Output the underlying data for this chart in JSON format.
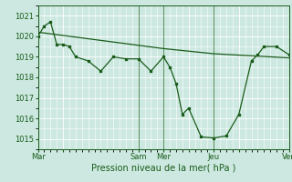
{
  "xlabel": "Pression niveau de la mer( hPa )",
  "bg_color": "#cce8e0",
  "grid_color": "#ffffff",
  "line_color": "#1a5c1a",
  "ylim": [
    1014.5,
    1021.5
  ],
  "yticks": [
    1015,
    1016,
    1017,
    1018,
    1019,
    1020,
    1021
  ],
  "xtick_labels": [
    "Mar",
    "",
    "Sam",
    "Mer",
    "",
    "Jeu",
    "",
    "Ven"
  ],
  "xtick_positions": [
    0,
    24,
    96,
    120,
    144,
    168,
    192,
    240
  ],
  "vline_positions": [
    96,
    120,
    168,
    240
  ],
  "series1_x": [
    0,
    6,
    12,
    18,
    24,
    30,
    36,
    48,
    60,
    72,
    84,
    96,
    108,
    120,
    126,
    132,
    138,
    144,
    156,
    168,
    180,
    192,
    204,
    210,
    216,
    228,
    240
  ],
  "series1_y": [
    1020.0,
    1020.5,
    1020.7,
    1019.6,
    1019.6,
    1019.5,
    1019.0,
    1018.8,
    1018.3,
    1019.0,
    1018.9,
    1018.9,
    1018.3,
    1019.0,
    1018.5,
    1017.7,
    1016.2,
    1016.5,
    1015.1,
    1015.05,
    1015.15,
    1016.2,
    1018.8,
    1019.1,
    1019.5,
    1019.5,
    1019.1
  ],
  "series2_x": [
    0,
    60,
    120,
    168,
    204,
    240
  ],
  "series2_y": [
    1020.2,
    1019.8,
    1019.4,
    1019.15,
    1019.05,
    1018.95
  ],
  "total_hours": 240,
  "ylabel_fontsize": 5,
  "xlabel_fontsize": 7,
  "xtick_fontsize": 6,
  "ytick_fontsize": 6
}
